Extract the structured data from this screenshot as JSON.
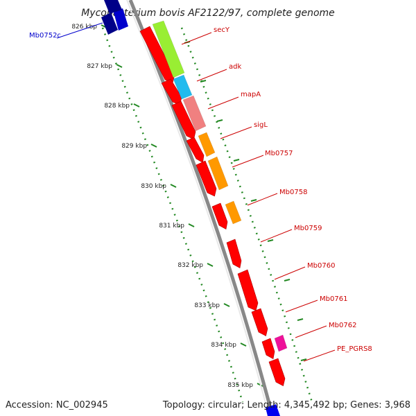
{
  "title": "Mycobacterium bovis AF2122/97, complete genome",
  "footer": {
    "accession": "Accession: NC_002945",
    "topology": "Topology: circular; Length: 4,345,492 bp; Genes: 3,968"
  },
  "ticks": [
    "826 kbp",
    "827 kbp",
    "828 kbp",
    "829 kbp",
    "830 kbp",
    "831 kbp",
    "832 kbp",
    "833 kbp",
    "834 kbp",
    "835 kbp"
  ],
  "genes": [
    {
      "name": "Mb0752c",
      "strand": "minus",
      "color": "#0000cc"
    },
    {
      "name": "secY",
      "strand": "plus",
      "color": "#ff0000",
      "feature_color": "#99ee33"
    },
    {
      "name": "adk",
      "strand": "plus",
      "color": "#ff0000",
      "feature_color": "#22bbee"
    },
    {
      "name": "mapA",
      "strand": "plus",
      "color": "#ff0000",
      "feature_color": "#f08080"
    },
    {
      "name": "sigL",
      "strand": "plus",
      "color": "#ff0000",
      "feature_color": "#ff9900"
    },
    {
      "name": "Mb0757",
      "strand": "plus",
      "color": "#ff0000",
      "feature_color": "#ff9900"
    },
    {
      "name": "Mb0758",
      "strand": "plus",
      "color": "#ff0000",
      "feature_color": "#ff9900"
    },
    {
      "name": "Mb0759",
      "strand": "plus",
      "color": "#ff0000"
    },
    {
      "name": "Mb0760",
      "strand": "plus",
      "color": "#ff0000"
    },
    {
      "name": "Mb0761",
      "strand": "plus",
      "color": "#ff0000"
    },
    {
      "name": "Mb0762",
      "strand": "plus",
      "color": "#ff0000",
      "feature_color": "#ee1199"
    },
    {
      "name": "PE_PGRS8",
      "strand": "plus",
      "color": "#ff0000"
    }
  ],
  "colors": {
    "backbone": "#888888",
    "tick_marks": "#228822",
    "label_plus": "#cc0000",
    "label_minus": "#0000cc"
  }
}
